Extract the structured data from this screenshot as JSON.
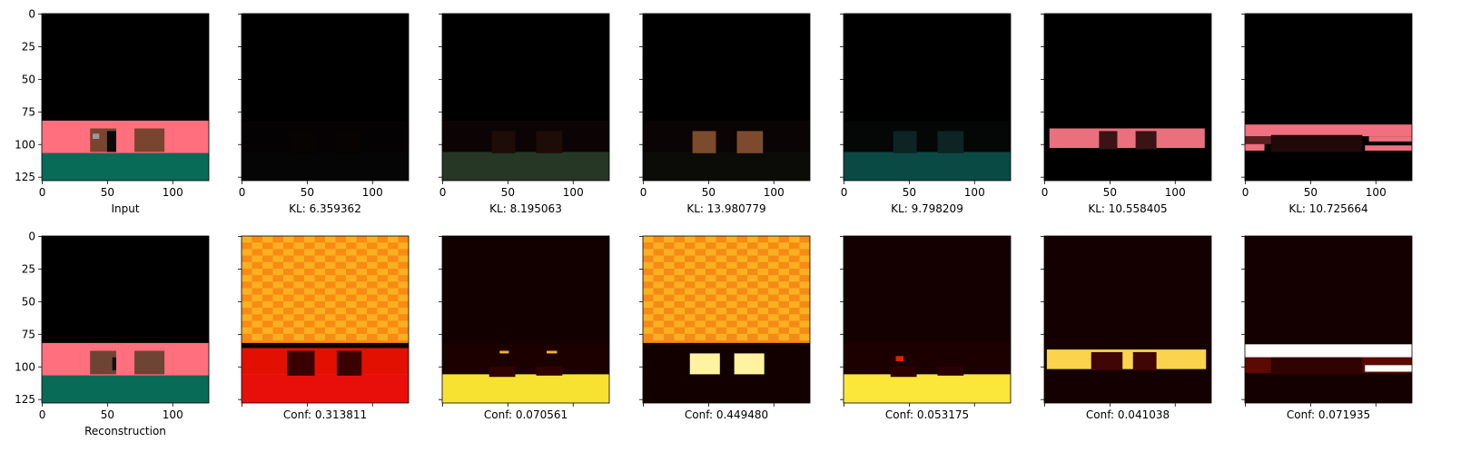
{
  "chart_data": {
    "type": "image_grid",
    "rows": 2,
    "cols": 7,
    "image_size": [
      128,
      128
    ],
    "xticks": [
      0,
      50,
      100
    ],
    "yticks": [
      0,
      25,
      50,
      75,
      100,
      125
    ],
    "top_row": [
      {
        "label": "Input",
        "kind": "scene",
        "colors": {
          "sky": "#000000",
          "wall": "#ff6f7d",
          "floor": "#076b57",
          "object": "#7a4530"
        }
      },
      {
        "label": "KL: 6.359362",
        "kind": "decoded",
        "colors": {
          "wall": "#050203",
          "floor": "#040504",
          "object": "#070302"
        }
      },
      {
        "label": "KL: 8.195063",
        "kind": "decoded",
        "colors": {
          "wall": "#0c0404",
          "floor": "#263726",
          "object": "#1d0c07"
        }
      },
      {
        "label": "KL: 13.980779",
        "kind": "decoded",
        "colors": {
          "wall": "#0a0404",
          "floor": "#0b0b08",
          "object": "#7c4a2c"
        }
      },
      {
        "label": "KL: 9.798209",
        "kind": "decoded",
        "colors": {
          "wall": "#050606",
          "floor": "#0a4a45",
          "object": "#0d2424"
        }
      },
      {
        "label": "KL: 10.558405",
        "kind": "decoded",
        "colors": {
          "wall": "#eb707e",
          "floor": "#060303",
          "object": "#3a1414"
        }
      },
      {
        "label": "KL: 10.725664",
        "kind": "decoded",
        "colors": {
          "wall": "#f0707f",
          "floor": "#060303",
          "object": "#220909"
        }
      }
    ],
    "bottom_row": [
      {
        "label": "Reconstruction",
        "kind": "scene",
        "colors": {
          "sky": "#000000",
          "wall": "#ff6f7d",
          "floor": "#076b57",
          "object": "#6e4534"
        }
      },
      {
        "label": "Conf: 0.313811",
        "kind": "heatmap",
        "colors": {
          "top": "#f98a12",
          "wall_band": "#e21000",
          "floor": "#e80e0a",
          "object": "#3a0000"
        }
      },
      {
        "label": "Conf: 0.070561",
        "kind": "heatmap",
        "colors": {
          "top": "#120000",
          "wall_band": "#1c0000",
          "floor": "#f8e231",
          "object": "#300202"
        }
      },
      {
        "label": "Conf: 0.449480",
        "kind": "heatmap",
        "colors": {
          "top": "#f58a14",
          "wall_band": "#120000",
          "floor": "#1a0000",
          "object": "#fff2a0"
        }
      },
      {
        "label": "Conf: 0.053175",
        "kind": "heatmap",
        "colors": {
          "top": "#140000",
          "wall_band": "#1c0000",
          "floor": "#fbe63a",
          "object": "#2a0000"
        }
      },
      {
        "label": "Conf: 0.041038",
        "kind": "heatmap",
        "colors": {
          "top": "#140000",
          "wall_band": "#fcd34d",
          "floor": "#140000",
          "object": "#400505"
        }
      },
      {
        "label": "Conf: 0.071935",
        "kind": "heatmap",
        "colors": {
          "top": "#140000",
          "wall_band": "#ffffff",
          "floor": "#140000",
          "object": "#300303"
        }
      }
    ]
  }
}
